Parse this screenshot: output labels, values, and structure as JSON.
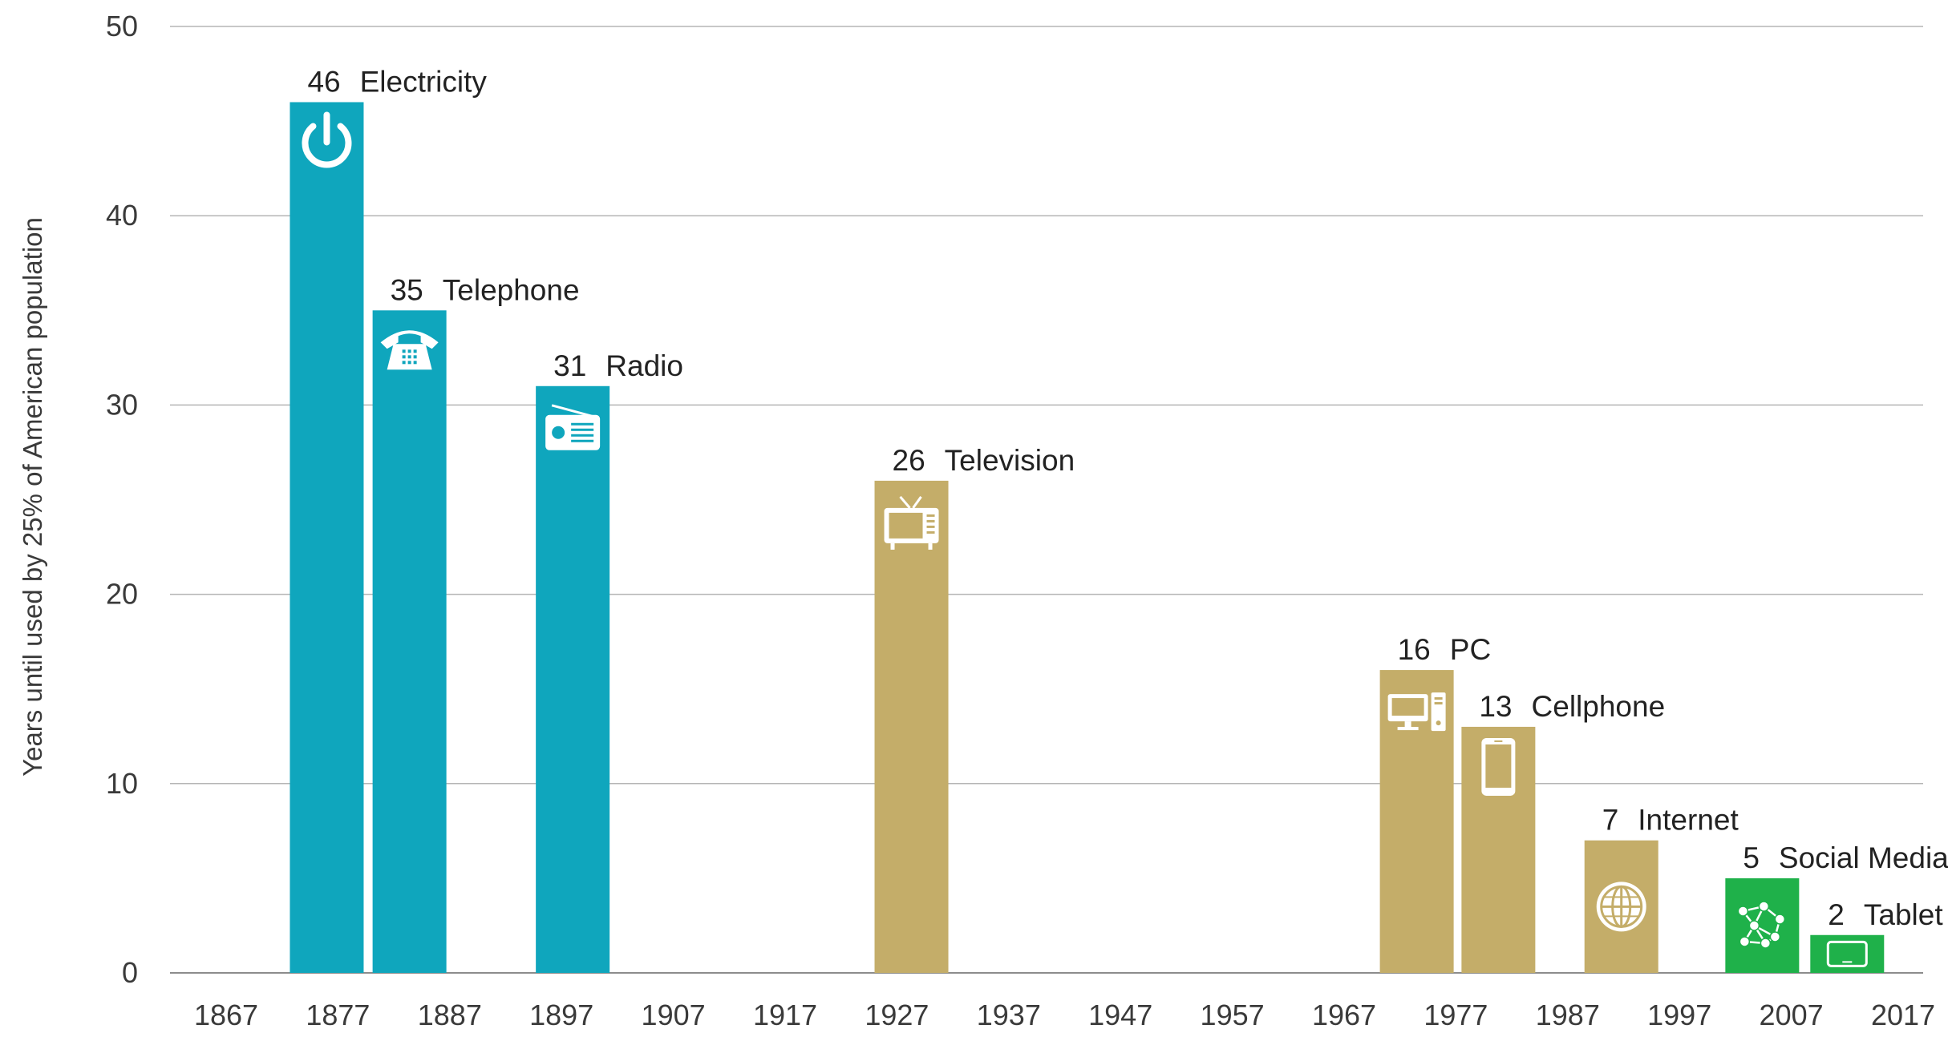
{
  "chart_data": {
    "type": "bar",
    "ylabel": "Years until used by 25% of American population",
    "xlabel": "",
    "title": "",
    "ylim": [
      0,
      50
    ],
    "yticks": [
      0,
      10,
      20,
      30,
      40,
      50
    ],
    "xlim": [
      1867,
      2017
    ],
    "xticks": [
      1867,
      1877,
      1887,
      1897,
      1907,
      1917,
      1927,
      1937,
      1947,
      1957,
      1967,
      1977,
      1987,
      1997,
      2007,
      2017
    ],
    "grid": true,
    "colors": {
      "early": "#0fa6bd",
      "mid": "#c4ad69",
      "recent": "#1fb14a"
    },
    "bars": [
      {
        "name": "Electricity",
        "year": 1876,
        "value": 46,
        "value_label": "46",
        "color": "early",
        "icon": "power-icon"
      },
      {
        "name": "Telephone",
        "year": 1883.4,
        "value": 35,
        "value_label": "35",
        "color": "early",
        "icon": "telephone-icon"
      },
      {
        "name": "Radio",
        "year": 1898,
        "value": 31,
        "value_label": "31",
        "color": "early",
        "icon": "radio-icon"
      },
      {
        "name": "Television",
        "year": 1928.3,
        "value": 26,
        "value_label": "26",
        "color": "mid",
        "icon": "television-icon"
      },
      {
        "name": "PC",
        "year": 1973.5,
        "value": 16,
        "value_label": "16",
        "color": "mid",
        "icon": "computer-icon"
      },
      {
        "name": "Cellphone",
        "year": 1980.8,
        "value": 13,
        "value_label": "13",
        "color": "mid",
        "icon": "cellphone-icon"
      },
      {
        "name": "Internet",
        "year": 1991.8,
        "value": 7,
        "value_label": "7",
        "color": "mid",
        "icon": "globe-icon"
      },
      {
        "name": "Social Media",
        "year": 2004.4,
        "value": 5,
        "value_label": "5",
        "color": "recent",
        "icon": "network-icon"
      },
      {
        "name": "Tablet",
        "year": 2012,
        "value": 2,
        "value_label": "2",
        "color": "recent",
        "icon": "tablet-icon"
      }
    ]
  }
}
